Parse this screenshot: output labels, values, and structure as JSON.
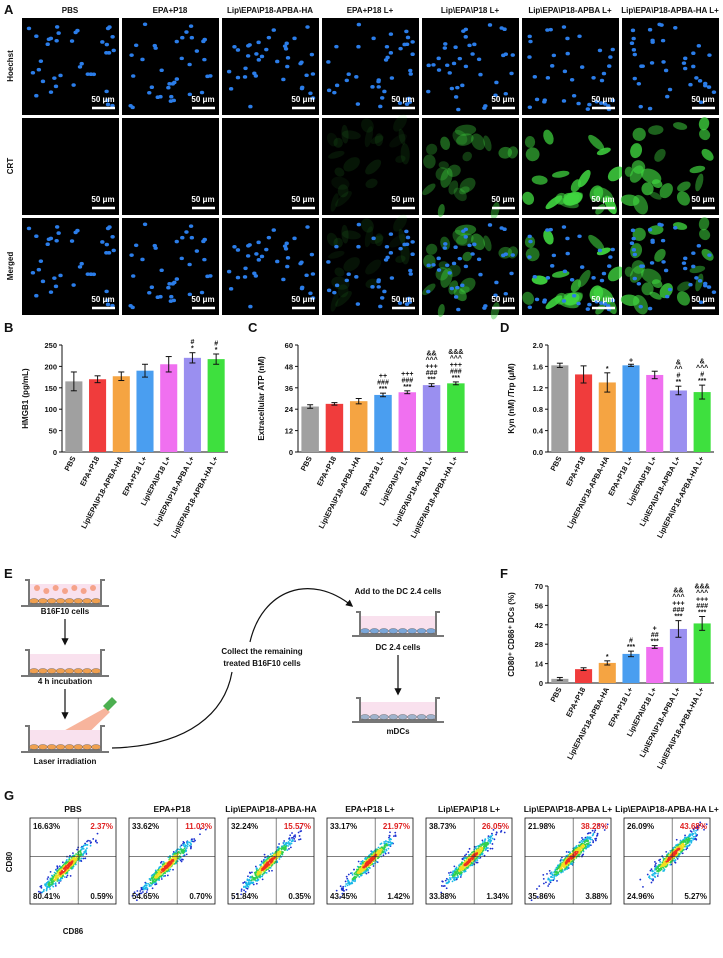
{
  "panel_labels": [
    "A",
    "B",
    "C",
    "D",
    "E",
    "F",
    "G"
  ],
  "groups": [
    "PBS",
    "EPA+P18",
    "Lip\\EPA\\P18-APBA-HA",
    "EPA+P18 L+",
    "Lip\\EPA\\P18 L+",
    "Lip\\EPA\\P18-APBA L+",
    "Lip\\EPA\\P18-APBA-HA L+"
  ],
  "panel_a": {
    "rows": [
      "Hoechst",
      "CRT",
      "Merged"
    ],
    "scale_bar": "50 μm"
  },
  "chart_data": [
    {
      "type": "bar",
      "ylabel": "HMGB1 (pg/mL)",
      "categories": [
        "PBS",
        "EPA+P18",
        "Lip\\EPA\\P18-APBA-HA",
        "EPA+P18 L+",
        "Lip\\EPA\\P18 L+",
        "Lip\\EPA\\P18-APBA L+",
        "Lip\\EPA\\P18-APBA-HA L+"
      ],
      "values": [
        165,
        170,
        177,
        190,
        205,
        220,
        217
      ],
      "errors": [
        22,
        8,
        10,
        15,
        18,
        12,
        12
      ],
      "annotations": [
        [],
        [],
        [],
        [],
        [],
        [
          "#",
          "*"
        ],
        [
          "#",
          "*"
        ]
      ],
      "colors": [
        "#a0a0a0",
        "#f03c3c",
        "#f5a442",
        "#4a9ef0",
        "#f070f0",
        "#9a8ff0",
        "#3ee03e"
      ],
      "ylim": [
        0,
        250
      ],
      "yticks": [
        0,
        50,
        100,
        150,
        200,
        250
      ]
    },
    {
      "type": "bar",
      "ylabel": "Extracellular ATP (nM)",
      "categories": [
        "PBS",
        "EPA+P18",
        "Lip\\EPA\\P18-APBA-HA",
        "EPA+P18 L+",
        "Lip\\EPA\\P18 L+",
        "Lip\\EPA\\P18-APBA L+",
        "Lip\\EPA\\P18-APBA-HA L+"
      ],
      "values": [
        25.5,
        27,
        28.5,
        32,
        33.5,
        37.5,
        38.5
      ],
      "errors": [
        1,
        0.7,
        1.5,
        1,
        0.8,
        0.8,
        0.8
      ],
      "annotations": [
        [],
        [],
        [],
        [
          "++",
          "###",
          "***"
        ],
        [
          "+++",
          "###",
          "***"
        ],
        [
          "&&",
          "^^^",
          "+++",
          "###",
          "***"
        ],
        [
          "&&&",
          "^^^",
          "+++",
          "###",
          "***"
        ]
      ],
      "colors": [
        "#a0a0a0",
        "#f03c3c",
        "#f5a442",
        "#4a9ef0",
        "#f070f0",
        "#9a8ff0",
        "#3ee03e"
      ],
      "ylim": [
        0,
        60
      ],
      "yticks": [
        0,
        12,
        24,
        36,
        48,
        60
      ]
    },
    {
      "type": "bar",
      "ylabel": "Kyn (nM) /Trp (μM)",
      "categories": [
        "PBS",
        "EPA+P18",
        "Lip\\EPA\\P18-APBA-HA",
        "EPA+P18 L+",
        "Lip\\EPA\\P18 L+",
        "Lip\\EPA\\P18-APBA L+",
        "Lip\\EPA\\P18-APBA-HA L+"
      ],
      "values": [
        1.62,
        1.45,
        1.3,
        1.62,
        1.44,
        1.15,
        1.12
      ],
      "errors": [
        0.04,
        0.16,
        0.18,
        0.02,
        0.07,
        0.08,
        0.13
      ],
      "annotations": [
        [],
        [],
        [
          "*"
        ],
        [
          "+"
        ],
        [],
        [
          "&",
          "^^",
          "#",
          "**"
        ],
        [
          "&",
          "^^^",
          "#",
          "***"
        ]
      ],
      "colors": [
        "#a0a0a0",
        "#f03c3c",
        "#f5a442",
        "#4a9ef0",
        "#f070f0",
        "#9a8ff0",
        "#3ee03e"
      ],
      "ylim": [
        0,
        2
      ],
      "yticks": [
        {
          "value": 0,
          "label": "0.0"
        },
        0.4,
        0.8,
        1.2,
        1.6,
        {
          "value": 2,
          "label": "2.0"
        }
      ]
    },
    {
      "type": "bar",
      "ylabel": "CD80⁺ CD86⁺ DCs (%)",
      "categories": [
        "PBS",
        "EPA+P18",
        "Lip\\EPA\\P18-APBA-HA",
        "EPA+P18 L+",
        "Lip\\EPA\\P18 L+",
        "Lip\\EPA\\P18-APBA L+",
        "Lip\\EPA\\P18-APBA-HA L+"
      ],
      "values": [
        3,
        10,
        14.5,
        21,
        26,
        39,
        43
      ],
      "errors": [
        1,
        1,
        1.5,
        2,
        1,
        6,
        5
      ],
      "annotations": [
        [],
        [],
        [
          "*"
        ],
        [
          "#",
          "***"
        ],
        [
          "+",
          "##",
          "***"
        ],
        [
          "&&",
          "^^^",
          "+++",
          "###",
          "***"
        ],
        [
          "&&&",
          "^^^",
          "+++",
          "###",
          "***"
        ]
      ],
      "colors": [
        "#a0a0a0",
        "#f03c3c",
        "#f5a442",
        "#4a9ef0",
        "#f070f0",
        "#9a8ff0",
        "#3ee03e"
      ],
      "ylim": [
        0,
        70
      ],
      "yticks": [
        0,
        14,
        28,
        42,
        56,
        70
      ]
    }
  ],
  "panel_e": {
    "labels": [
      "B16F10 cells",
      "4 h incubation",
      "Laser irradiation",
      "Collect the remaining",
      "treated B16F10 cells",
      "Add to the DC 2.4 cells",
      "DC 2.4 cells",
      "mDCs"
    ]
  },
  "panel_g": {
    "xlabel": "CD86",
    "ylabel": "CD80",
    "plots": [
      {
        "title": "PBS",
        "quadrants": [
          "16.63%",
          "2.37%",
          "80.41%",
          "0.59%"
        ]
      },
      {
        "title": "EPA+P18",
        "quadrants": [
          "33.62%",
          "11.03%",
          "54.65%",
          "0.70%"
        ]
      },
      {
        "title": "Lip\\EPA\\P18-APBA-HA",
        "quadrants": [
          "32.24%",
          "15.57%",
          "51.84%",
          "0.35%"
        ]
      },
      {
        "title": "EPA+P18 L+",
        "quadrants": [
          "33.17%",
          "21.97%",
          "43.45%",
          "1.42%"
        ]
      },
      {
        "title": "Lip\\EPA\\P18 L+",
        "quadrants": [
          "38.73%",
          "26.05%",
          "33.88%",
          "1.34%"
        ]
      },
      {
        "title": "Lip\\EPA\\P18-APBA L+",
        "quadrants": [
          "21.98%",
          "38.28%",
          "35.86%",
          "3.88%"
        ]
      },
      {
        "title": "Lip\\EPA\\P18-APBA-HA L+",
        "quadrants": [
          "26.09%",
          "43.68%",
          "24.96%",
          "5.27%"
        ]
      }
    ]
  }
}
